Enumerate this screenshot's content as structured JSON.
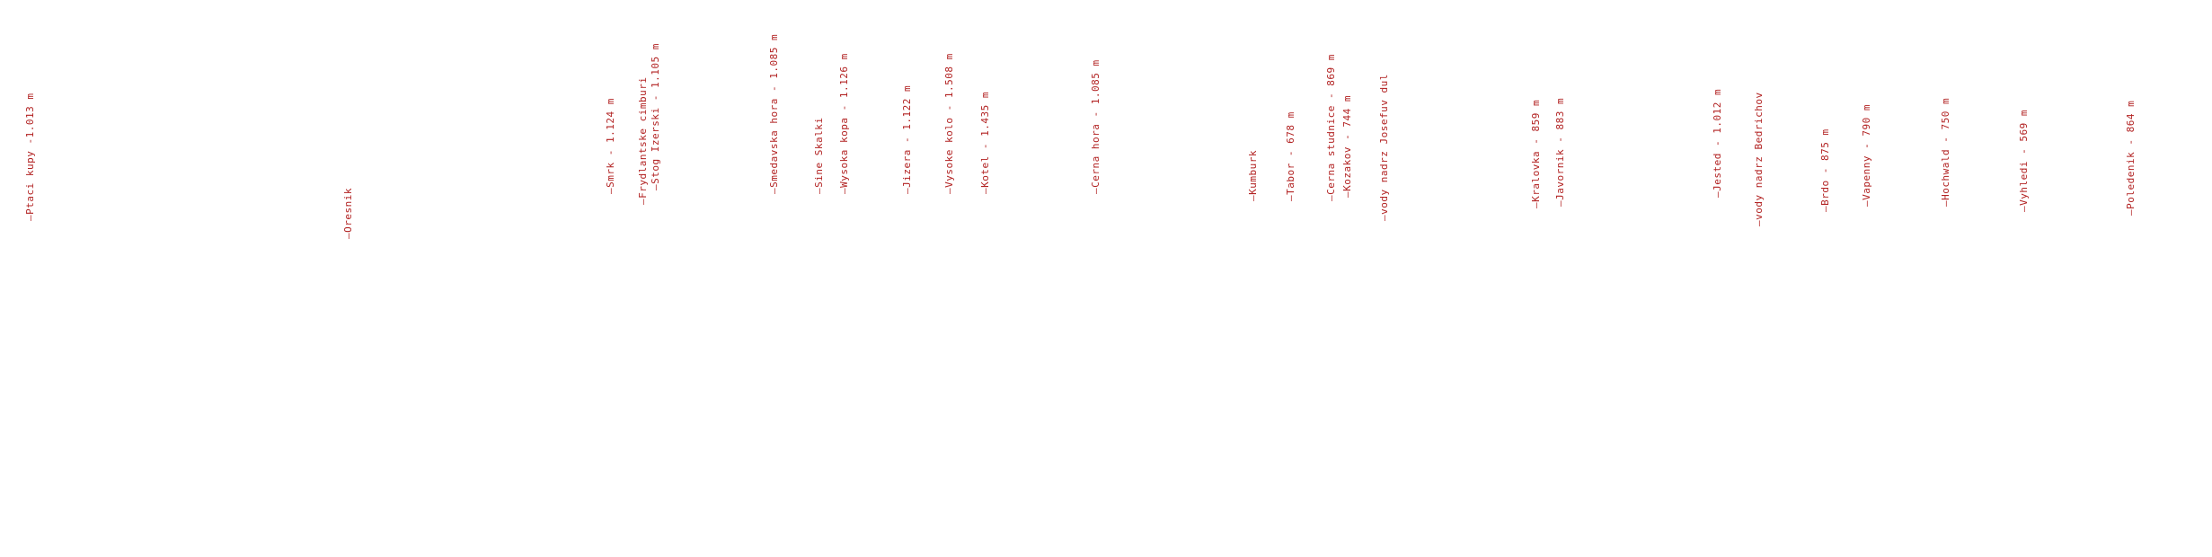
{
  "colors": {
    "label": "#b22222",
    "background": "#ffffff"
  },
  "peaks": [
    {
      "text": "—Ptaci kupy -1.013 m"
    },
    {
      "text": "—Oresnik"
    },
    {
      "text": "—Smrk -  1.124 m"
    },
    {
      "text": "—Frydlantske cimburi"
    },
    {
      "text": "—Stog Izerski - 1.105 m"
    },
    {
      "text": "—Smedavska hora - 1.085 m"
    },
    {
      "text": "—Sine Skalki"
    },
    {
      "text": "—Wysoka kopa - 1.126 m"
    },
    {
      "text": "—Jizera - 1.122 m"
    },
    {
      "text": "—Vysoke kolo - 1.508 m"
    },
    {
      "text": "—Kotel - 1.435 m"
    },
    {
      "text": "—Cerna hora - 1.085 m"
    },
    {
      "text": "—Kumburk"
    },
    {
      "text": "—Tabor - 678 m"
    },
    {
      "text": "—Cerna studnice - 869 m"
    },
    {
      "text": "—Kozakov - 744 m"
    },
    {
      "text": "—vody nadrz Josefuv dul"
    },
    {
      "text": "—Kralovka - 859 m"
    },
    {
      "text": "—Javornik - 883 m"
    },
    {
      "text": "—Jested - 1.012 m"
    },
    {
      "text": "—vody nadrz Bedrichov"
    },
    {
      "text": "—Brdo - 875 m"
    },
    {
      "text": "—Vapenny - 790 m"
    },
    {
      "text": "—Hochwald - 750 m"
    },
    {
      "text": "—Vyhledi - 569 m"
    },
    {
      "text": "—Poledenik - 864 m"
    }
  ]
}
